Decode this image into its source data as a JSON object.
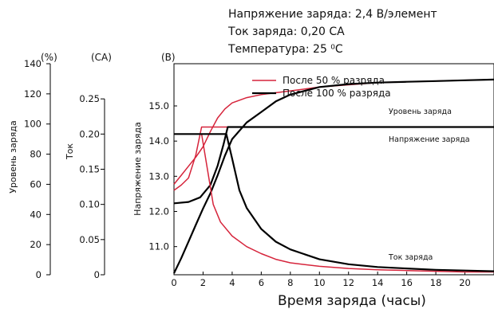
{
  "conditions": {
    "voltage": "Напряжение заряда: 2,4 В/элемент",
    "current": "Ток заряда: 0,20 CA",
    "temperature": "Температура: 25 ⁰C"
  },
  "chart_data": {
    "type": "line",
    "xlabel": "Время заряда (часы)",
    "xlim": [
      0,
      22
    ],
    "x_ticks": [
      "0",
      "2",
      "4",
      "6",
      "8",
      "10",
      "12",
      "14",
      "16",
      "18",
      "20"
    ],
    "axes": {
      "percent": {
        "unit": "(%)",
        "label": "Уровень заряда",
        "range": [
          0,
          140
        ],
        "ticks": [
          "0",
          "20",
          "40",
          "60",
          "80",
          "100",
          "120",
          "140"
        ]
      },
      "current": {
        "unit": "(CA)",
        "label": "Ток",
        "range": [
          0,
          0.3
        ],
        "ticks": [
          "0",
          "0.05",
          "0.10",
          "0.15",
          "0.20",
          "0.25"
        ]
      },
      "voltage": {
        "unit": "(В)",
        "label": "Напряжение заряда",
        "range": [
          10.2,
          16.2
        ],
        "ticks": [
          "11.0",
          "12.0",
          "13.0",
          "14.0",
          "15.0"
        ]
      }
    },
    "legend": [
      "После 50 % разряда",
      "После 100 % разряда"
    ],
    "colors": {
      "after50": "#d6243b",
      "after100": "#000000"
    },
    "annotations": {
      "charge": "Уровень заряда",
      "voltage": "Напряжение заряда",
      "current": "Ток заряда"
    },
    "series": [
      {
        "name": "После 50 % разряда",
        "quantity": "Уровень заряда",
        "axis": "percent",
        "points": [
          [
            0,
            60
          ],
          [
            0.5,
            66
          ],
          [
            1,
            72
          ],
          [
            1.5,
            78
          ],
          [
            2,
            85
          ],
          [
            2.5,
            95
          ],
          [
            3,
            104
          ],
          [
            3.5,
            110
          ],
          [
            4,
            114
          ],
          [
            5,
            117.5
          ],
          [
            6,
            119.5
          ],
          [
            8,
            122
          ],
          [
            10,
            124.5
          ],
          [
            12,
            126
          ],
          [
            14,
            127.5
          ],
          [
            16,
            128
          ],
          [
            18,
            128.5
          ],
          [
            20,
            129
          ],
          [
            22,
            129.5
          ]
        ]
      },
      {
        "name": "После 100 % разряда",
        "quantity": "Уровень заряда",
        "axis": "percent",
        "points": [
          [
            0,
            1
          ],
          [
            0.5,
            11
          ],
          [
            1,
            22
          ],
          [
            1.5,
            33
          ],
          [
            2,
            44
          ],
          [
            2.5,
            54
          ],
          [
            3,
            66
          ],
          [
            3.5,
            79
          ],
          [
            4,
            90
          ],
          [
            5,
            101
          ],
          [
            6,
            108
          ],
          [
            7,
            115
          ],
          [
            8,
            119.5
          ],
          [
            10,
            124.5
          ],
          [
            12,
            126.5
          ],
          [
            14,
            127.5
          ],
          [
            16,
            128
          ],
          [
            18,
            128.5
          ],
          [
            20,
            129
          ],
          [
            22,
            129.5
          ]
        ]
      },
      {
        "name": "После 50 % разряда",
        "quantity": "Напряжение заряда",
        "axis": "voltage",
        "points": [
          [
            0,
            12.6
          ],
          [
            0.5,
            12.75
          ],
          [
            1,
            12.95
          ],
          [
            1.5,
            13.6
          ],
          [
            1.9,
            14.4
          ],
          [
            22,
            14.4
          ]
        ]
      },
      {
        "name": "После 100 % разряда",
        "quantity": "Напряжение заряда",
        "axis": "voltage",
        "points": [
          [
            0,
            12.23
          ],
          [
            1,
            12.27
          ],
          [
            1.8,
            12.4
          ],
          [
            2.5,
            12.75
          ],
          [
            3,
            13.3
          ],
          [
            3.4,
            13.9
          ],
          [
            3.7,
            14.4
          ],
          [
            22,
            14.4
          ]
        ]
      },
      {
        "name": "После 50 % разряда",
        "quantity": "Ток заряда",
        "axis": "current",
        "points": [
          [
            0,
            0.2
          ],
          [
            1.9,
            0.2
          ],
          [
            2.3,
            0.15
          ],
          [
            2.7,
            0.1
          ],
          [
            3.2,
            0.075
          ],
          [
            4,
            0.055
          ],
          [
            5,
            0.04
          ],
          [
            6,
            0.03
          ],
          [
            7,
            0.022
          ],
          [
            8,
            0.017
          ],
          [
            10,
            0.012
          ],
          [
            12,
            0.009
          ],
          [
            14,
            0.007
          ],
          [
            16,
            0.006
          ],
          [
            18,
            0.005
          ],
          [
            20,
            0.004
          ],
          [
            22,
            0.004
          ]
        ]
      },
      {
        "name": "После 100 % разряда",
        "quantity": "Ток заряда",
        "axis": "current",
        "points": [
          [
            0,
            0.2
          ],
          [
            3.6,
            0.2
          ],
          [
            4,
            0.165
          ],
          [
            4.5,
            0.12
          ],
          [
            5,
            0.095
          ],
          [
            6,
            0.065
          ],
          [
            7,
            0.047
          ],
          [
            8,
            0.036
          ],
          [
            10,
            0.022
          ],
          [
            12,
            0.015
          ],
          [
            14,
            0.011
          ],
          [
            16,
            0.009
          ],
          [
            18,
            0.007
          ],
          [
            20,
            0.006
          ],
          [
            22,
            0.005
          ]
        ]
      }
    ]
  }
}
